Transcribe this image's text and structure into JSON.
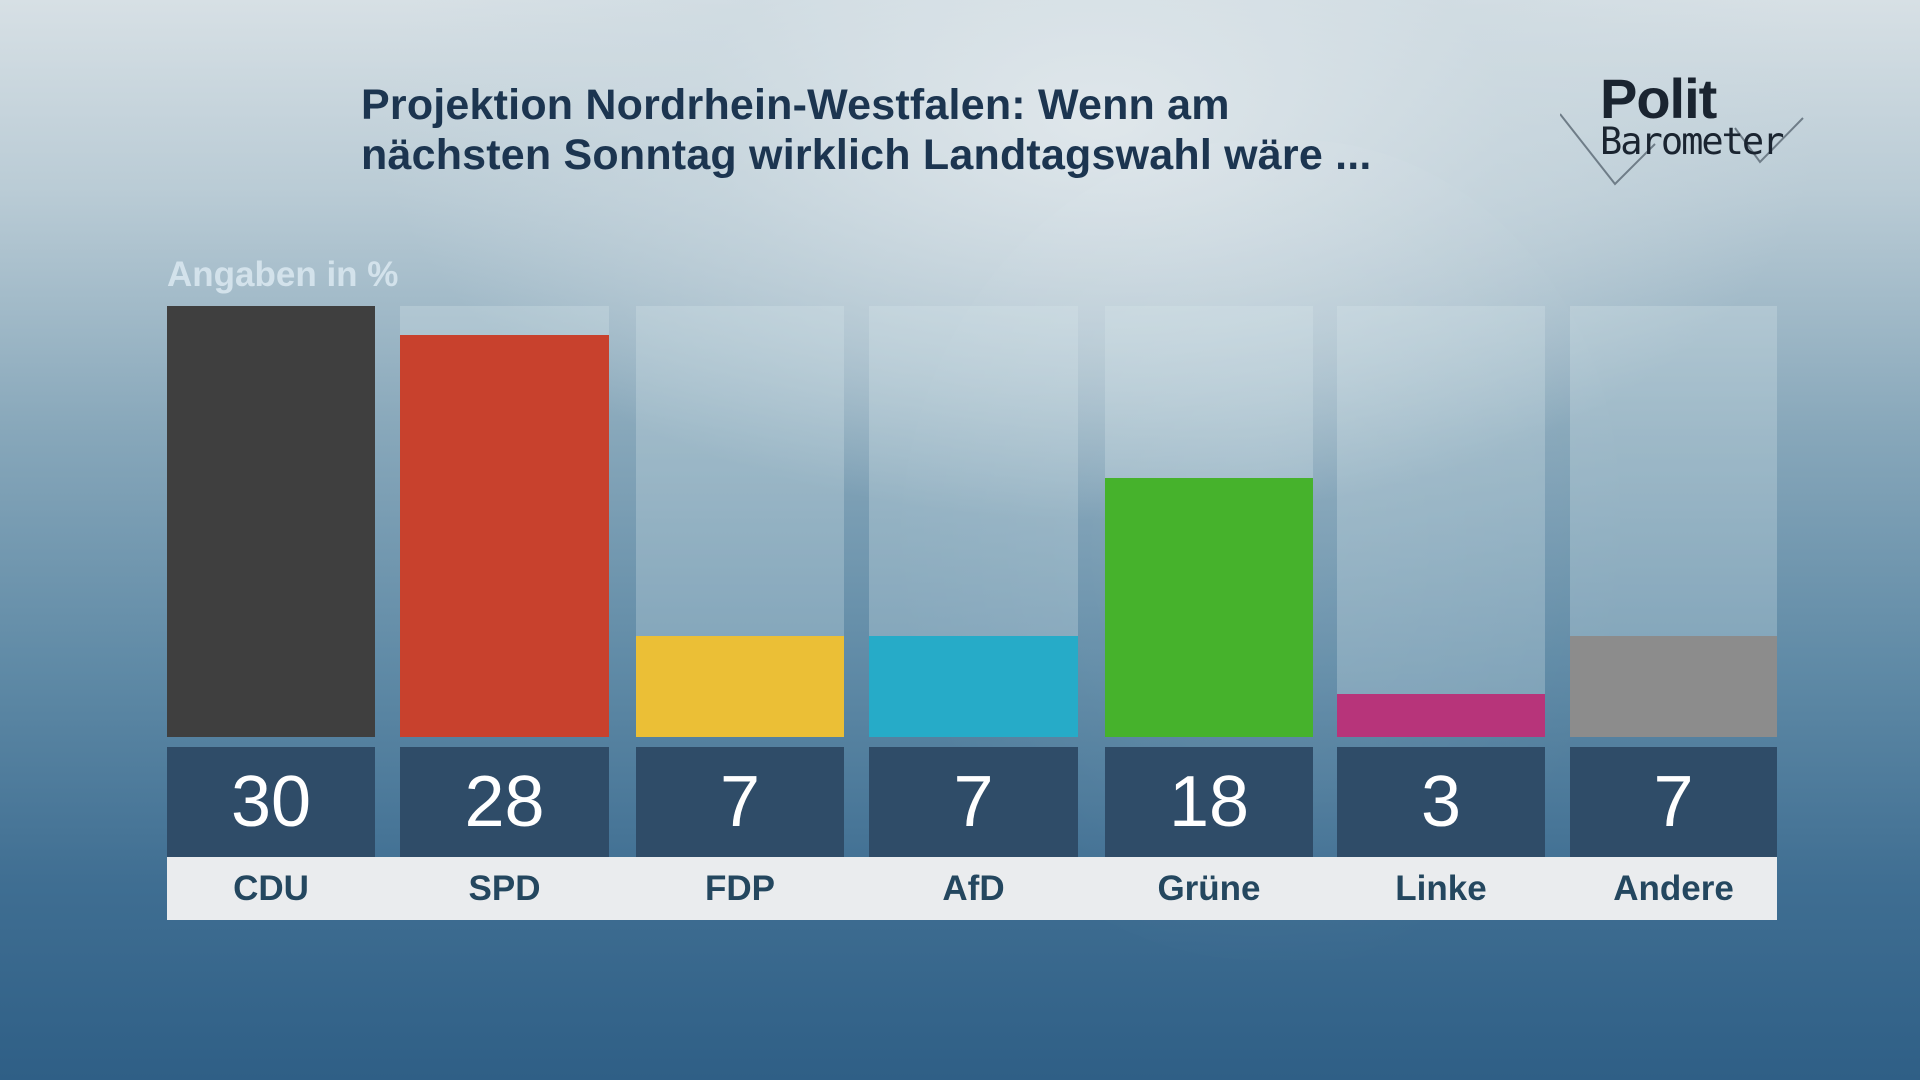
{
  "header": {
    "title_line1": "Projektion Nordrhein-Westfalen: Wenn am",
    "title_line2": "nächsten Sonntag wirklich Landtagswahl wäre ...",
    "logo_word1": "Polit",
    "logo_word2": "Barometer"
  },
  "unit_label": "Angaben in %",
  "parties": [
    {
      "name": "CDU",
      "value": "30",
      "color": "#3f3f3f"
    },
    {
      "name": "SPD",
      "value": "28",
      "color": "#c8412d"
    },
    {
      "name": "FDP",
      "value": "7",
      "color": "#ebbf36"
    },
    {
      "name": "AfD",
      "value": "7",
      "color": "#26abc8"
    },
    {
      "name": "Grüne",
      "value": "18",
      "color": "#46b22c"
    },
    {
      "name": "Linke",
      "value": "3",
      "color": "#b7347a"
    },
    {
      "name": "Andere",
      "value": "7",
      "color": "#8c8c8c"
    }
  ],
  "chart_data": {
    "type": "bar",
    "title": "Projektion Nordrhein-Westfalen: Wenn am nächsten Sonntag wirklich Landtagswahl wäre ...",
    "subtitle": "Angaben in %",
    "categories": [
      "CDU",
      "SPD",
      "FDP",
      "AfD",
      "Grüne",
      "Linke",
      "Andere"
    ],
    "values": [
      30,
      28,
      7,
      7,
      18,
      3,
      7
    ],
    "colors": [
      "#3f3f3f",
      "#c8412d",
      "#ebbf36",
      "#26abc8",
      "#46b22c",
      "#b7347a",
      "#8c8c8c"
    ],
    "xlabel": "",
    "ylabel": "Angaben in %",
    "ylim": [
      0,
      30
    ],
    "grid": false,
    "legend": "none",
    "data_labels": true
  }
}
